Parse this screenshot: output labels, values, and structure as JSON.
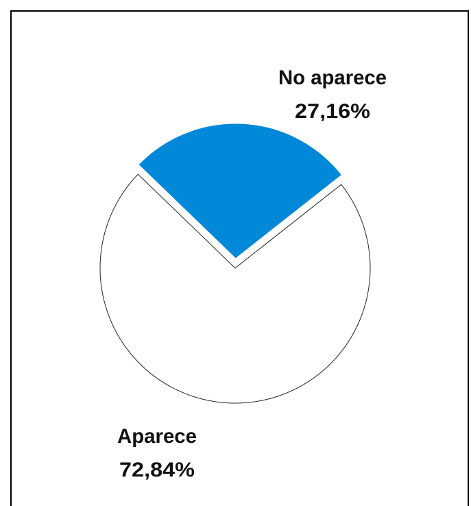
{
  "chart_data": {
    "type": "pie",
    "slices": [
      {
        "label": "No aparece",
        "value": 27.16,
        "value_text": "27,16%",
        "color": "#0288d8",
        "exploded": true
      },
      {
        "label": "Aparece",
        "value": 72.84,
        "value_text": "72,84%",
        "color": "#ffffff",
        "exploded": false
      }
    ]
  }
}
